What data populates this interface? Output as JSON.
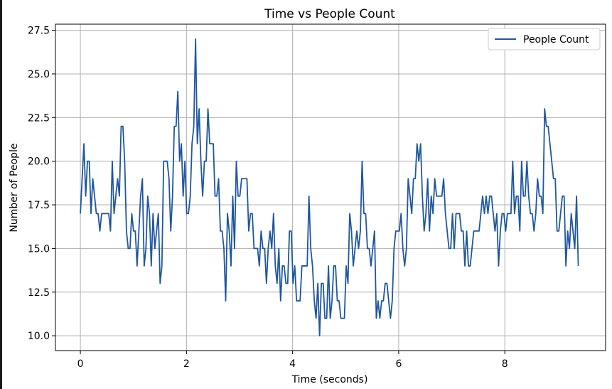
{
  "chart_data": {
    "type": "line",
    "title": "Time vs People Count",
    "xlabel": "Time (seconds)",
    "ylabel": "Number of People",
    "xlim": [
      -0.47,
      9.9
    ],
    "ylim": [
      9.15,
      27.85
    ],
    "xticks": [
      0,
      2,
      4,
      6,
      8
    ],
    "yticks": [
      10.0,
      12.5,
      15.0,
      17.5,
      20.0,
      22.5,
      25.0,
      27.5
    ],
    "xtick_labels": [
      "0",
      "2",
      "4",
      "6",
      "8"
    ],
    "ytick_labels": [
      "10.0",
      "12.5",
      "15.0",
      "17.5",
      "20.0",
      "22.5",
      "25.0",
      "27.5"
    ],
    "grid": true,
    "legend_position": "top-right",
    "x_start": 0,
    "x_step": 0.0334,
    "series": [
      {
        "name": "People Count",
        "color": "#1f57a0",
        "values": [
          17,
          19,
          21,
          18,
          20,
          20,
          17,
          19,
          18,
          17,
          17,
          16,
          17,
          17,
          17,
          17,
          17,
          16,
          20,
          17,
          18,
          19,
          18,
          22,
          22,
          20,
          16,
          15,
          15,
          17,
          16,
          16,
          14,
          16,
          18,
          19,
          14,
          15,
          18,
          17,
          14,
          17,
          15,
          16,
          17,
          13,
          14,
          20,
          20,
          20,
          19,
          16,
          18,
          22,
          22,
          24,
          20,
          21,
          18,
          20,
          17,
          17,
          18,
          21,
          22,
          27,
          21,
          23,
          20,
          18,
          20,
          20,
          23,
          21,
          21,
          21,
          18,
          18,
          19,
          16,
          16,
          15,
          12,
          17,
          16,
          14,
          18,
          15,
          20,
          18,
          18,
          19,
          19,
          19,
          19,
          16,
          17,
          17,
          15,
          15,
          15,
          14,
          16,
          15,
          15,
          13,
          15,
          16,
          15,
          17,
          14,
          13,
          15,
          12,
          14,
          14,
          13,
          13,
          16,
          16,
          13,
          14,
          12,
          12,
          12,
          14,
          14,
          14,
          14,
          18,
          15,
          14,
          12,
          11,
          13,
          10,
          13,
          13,
          11,
          11,
          14,
          11,
          12,
          14,
          14,
          12,
          12,
          11,
          11,
          11,
          14,
          13,
          17,
          16,
          14,
          15,
          16,
          15,
          16,
          20,
          17,
          17,
          15,
          15,
          14,
          15,
          16,
          11,
          12,
          11,
          12,
          12,
          13,
          13,
          12,
          11,
          12,
          15,
          16,
          16,
          16,
          17,
          15,
          14,
          15,
          19,
          18,
          17,
          19,
          19,
          21,
          20,
          21,
          18,
          16,
          17,
          19,
          16,
          18,
          17,
          19,
          18,
          18,
          18,
          18,
          19,
          17,
          16,
          15,
          15,
          17,
          15,
          17,
          17,
          17,
          16,
          16,
          14,
          16,
          14,
          14,
          15,
          16,
          16,
          16,
          16,
          17,
          18,
          17,
          18,
          17,
          18,
          18,
          17,
          16,
          17,
          14,
          16,
          17,
          17,
          16,
          17,
          17,
          17,
          20,
          17,
          18,
          18,
          16,
          20,
          18,
          18,
          20,
          18,
          17,
          17,
          16,
          17,
          19,
          18,
          18,
          17,
          23,
          22,
          22,
          21,
          20,
          19,
          19,
          16,
          16,
          17,
          18,
          18,
          14,
          16,
          15,
          17,
          16,
          15,
          18,
          14
        ]
      }
    ]
  }
}
